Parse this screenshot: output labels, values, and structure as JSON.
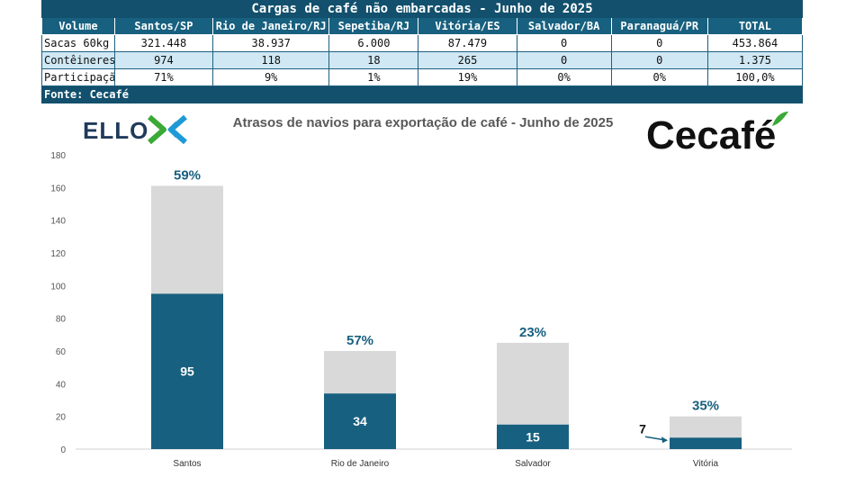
{
  "table": {
    "title": "Cargas de café não embarcadas - Junho de 2025",
    "headers": [
      "Volume",
      "Santos/SP",
      "Rio de Janeiro/RJ",
      "Sepetiba/RJ",
      "Vitória/ES",
      "Salvador/BA",
      "Paranaguá/PR",
      "TOTAL"
    ],
    "rows": [
      [
        "Sacas 60kg",
        "321.448",
        "38.937",
        "6.000",
        "87.479",
        "0",
        "0",
        "453.864"
      ],
      [
        "Contêineres",
        "974",
        "118",
        "18",
        "265",
        "0",
        "0",
        "1.375"
      ],
      [
        "Participação",
        "71%",
        "9%",
        "1%",
        "19%",
        "0%",
        "0%",
        "100,0%"
      ]
    ],
    "source": "Fonte: Cecafé"
  },
  "logos": {
    "left": "ELLO",
    "right": "Cecafé"
  },
  "colors": {
    "dark_series": "#17607f",
    "light_series": "#d9d9d9",
    "table_header": "#17607f",
    "table_alt_row": "#cfe8f4",
    "logo_green": "#3aa935",
    "logo_blue": "#1f9ad6"
  },
  "chart_data": {
    "type": "bar",
    "stacked": true,
    "title": "Atrasos de navios para exportação de café - Junho de 2025",
    "categories": [
      "Santos",
      "Rio de Janeiro",
      "Salvador",
      "Vitória"
    ],
    "series": [
      {
        "values": [
          95,
          34,
          15,
          7
        ]
      },
      {
        "values": [
          66,
          26,
          50,
          13
        ]
      }
    ],
    "data_labels": [
      "95",
      "34",
      "15",
      "7"
    ],
    "percent_labels": [
      "59%",
      "57%",
      "23%",
      "35%"
    ],
    "ylim": [
      0,
      180
    ],
    "yticks": [
      0,
      20,
      40,
      60,
      80,
      100,
      120,
      140,
      160,
      180
    ],
    "grid": false,
    "legend": "none"
  }
}
